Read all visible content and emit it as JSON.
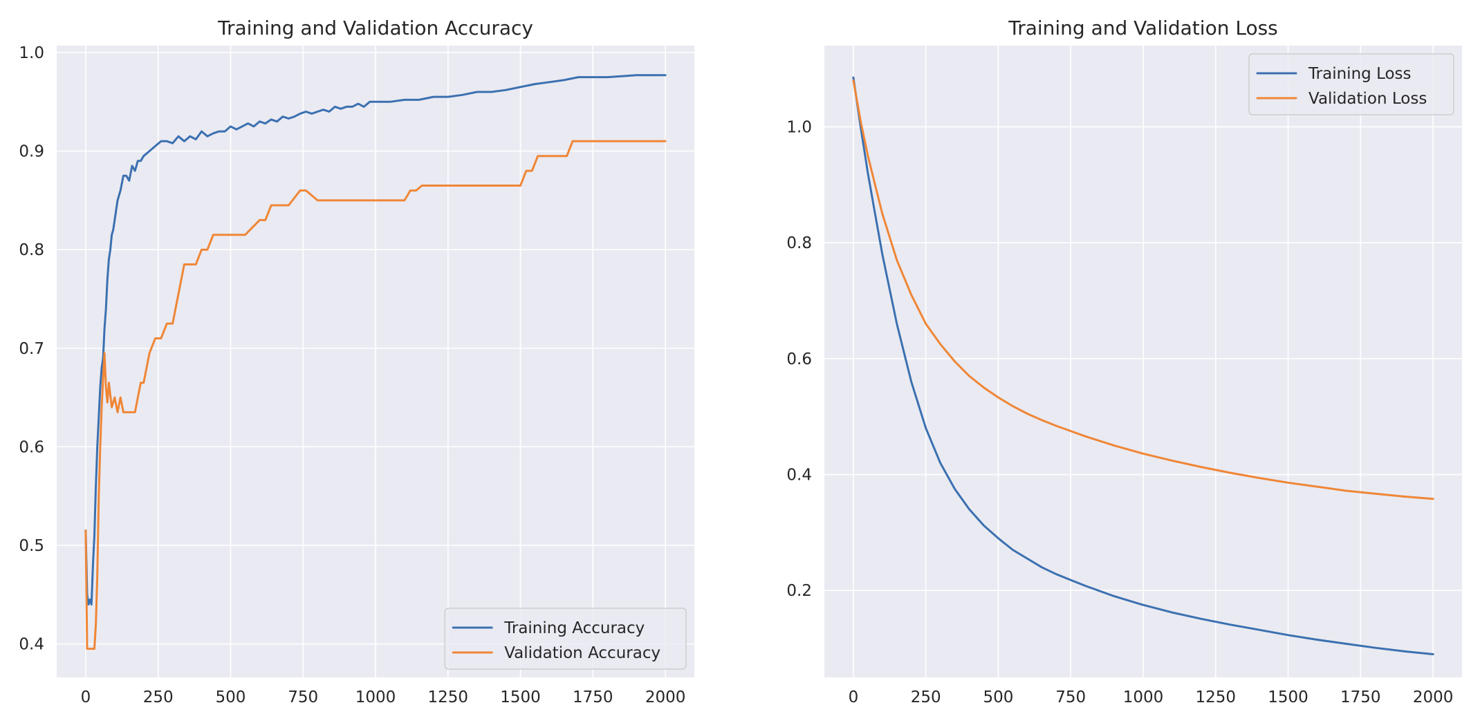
{
  "figure": {
    "background": "#ffffff",
    "plot_background": "#eaeaf2",
    "grid_color": "#ffffff"
  },
  "chart_data": [
    {
      "type": "line",
      "title": "Training and Validation Accuracy",
      "xlabel": "",
      "ylabel": "",
      "xlim": [
        -100,
        2100
      ],
      "ylim": [
        0.366,
        1.007
      ],
      "x_ticks": [
        0,
        250,
        500,
        750,
        1000,
        1250,
        1500,
        1750,
        2000
      ],
      "x_tick_labels": [
        "0",
        "250",
        "500",
        "750",
        "1000",
        "1250",
        "1500",
        "1750",
        "2000"
      ],
      "y_ticks": [
        0.4,
        0.5,
        0.6,
        0.7,
        0.8,
        0.9,
        1.0
      ],
      "y_tick_labels": [
        "0.4",
        "0.5",
        "0.6",
        "0.7",
        "0.8",
        "0.9",
        "1.0"
      ],
      "grid": true,
      "legend": "lower right",
      "series": [
        {
          "name": "Training Accuracy",
          "color": "#3a70b0",
          "x": [
            0,
            5,
            10,
            15,
            20,
            25,
            30,
            35,
            40,
            45,
            50,
            55,
            60,
            65,
            70,
            75,
            80,
            85,
            90,
            95,
            100,
            110,
            120,
            130,
            140,
            150,
            160,
            170,
            180,
            190,
            200,
            220,
            240,
            260,
            280,
            300,
            320,
            340,
            360,
            380,
            400,
            420,
            440,
            460,
            480,
            500,
            520,
            540,
            560,
            580,
            600,
            620,
            640,
            660,
            680,
            700,
            720,
            740,
            760,
            780,
            800,
            820,
            840,
            860,
            880,
            900,
            920,
            940,
            960,
            980,
            1000,
            1050,
            1100,
            1150,
            1200,
            1250,
            1300,
            1350,
            1400,
            1450,
            1500,
            1550,
            1600,
            1650,
            1700,
            1750,
            1800,
            1850,
            1900,
            1950,
            2000
          ],
          "y": [
            0.515,
            0.45,
            0.44,
            0.445,
            0.44,
            0.48,
            0.51,
            0.56,
            0.6,
            0.63,
            0.66,
            0.68,
            0.69,
            0.72,
            0.74,
            0.77,
            0.79,
            0.8,
            0.815,
            0.82,
            0.83,
            0.85,
            0.86,
            0.875,
            0.875,
            0.87,
            0.885,
            0.88,
            0.89,
            0.89,
            0.895,
            0.9,
            0.905,
            0.91,
            0.91,
            0.908,
            0.915,
            0.91,
            0.915,
            0.912,
            0.92,
            0.915,
            0.918,
            0.92,
            0.92,
            0.925,
            0.922,
            0.925,
            0.928,
            0.925,
            0.93,
            0.928,
            0.932,
            0.93,
            0.935,
            0.933,
            0.935,
            0.938,
            0.94,
            0.938,
            0.94,
            0.942,
            0.94,
            0.945,
            0.943,
            0.945,
            0.945,
            0.948,
            0.945,
            0.95,
            0.95,
            0.95,
            0.952,
            0.952,
            0.955,
            0.955,
            0.957,
            0.96,
            0.96,
            0.962,
            0.965,
            0.968,
            0.97,
            0.972,
            0.975,
            0.975,
            0.975,
            0.976,
            0.977,
            0.977,
            0.977
          ]
        },
        {
          "name": "Validation Accuracy",
          "color": "#ef8636",
          "x": [
            0,
            5,
            10,
            20,
            30,
            35,
            40,
            45,
            50,
            55,
            60,
            65,
            70,
            75,
            80,
            90,
            100,
            110,
            120,
            130,
            140,
            150,
            160,
            170,
            180,
            190,
            200,
            210,
            220,
            240,
            260,
            280,
            300,
            310,
            320,
            330,
            340,
            360,
            380,
            400,
            420,
            440,
            460,
            480,
            500,
            550,
            600,
            620,
            640,
            660,
            700,
            740,
            760,
            800,
            840,
            900,
            1000,
            1100,
            1120,
            1140,
            1160,
            1200,
            1300,
            1400,
            1500,
            1520,
            1540,
            1560,
            1600,
            1660,
            1680,
            1700,
            1750,
            1800,
            1900,
            2000
          ],
          "y": [
            0.515,
            0.395,
            0.395,
            0.395,
            0.395,
            0.42,
            0.47,
            0.55,
            0.6,
            0.64,
            0.67,
            0.695,
            0.66,
            0.645,
            0.665,
            0.64,
            0.65,
            0.635,
            0.65,
            0.635,
            0.635,
            0.635,
            0.635,
            0.635,
            0.65,
            0.665,
            0.665,
            0.68,
            0.695,
            0.71,
            0.71,
            0.725,
            0.725,
            0.74,
            0.755,
            0.77,
            0.785,
            0.785,
            0.785,
            0.8,
            0.8,
            0.815,
            0.815,
            0.815,
            0.815,
            0.815,
            0.83,
            0.83,
            0.845,
            0.845,
            0.845,
            0.86,
            0.86,
            0.85,
            0.85,
            0.85,
            0.85,
            0.85,
            0.86,
            0.86,
            0.865,
            0.865,
            0.865,
            0.865,
            0.865,
            0.88,
            0.88,
            0.895,
            0.895,
            0.895,
            0.91,
            0.91,
            0.91,
            0.91,
            0.91,
            0.91
          ]
        }
      ]
    },
    {
      "type": "line",
      "title": "Training and Validation Loss",
      "xlabel": "",
      "ylabel": "",
      "xlim": [
        -100,
        2100
      ],
      "ylim": [
        0.05,
        1.14
      ],
      "x_ticks": [
        0,
        250,
        500,
        750,
        1000,
        1250,
        1500,
        1750,
        2000
      ],
      "x_tick_labels": [
        "0",
        "250",
        "500",
        "750",
        "1000",
        "1250",
        "1500",
        "1750",
        "2000"
      ],
      "y_ticks": [
        0.2,
        0.4,
        0.6,
        0.8,
        1.0
      ],
      "y_tick_labels": [
        "0.2",
        "0.4",
        "0.6",
        "0.8",
        "1.0"
      ],
      "grid": true,
      "legend": "upper right",
      "series": [
        {
          "name": "Training Loss",
          "color": "#3a70b0",
          "x": [
            0,
            25,
            50,
            75,
            100,
            150,
            200,
            250,
            300,
            350,
            400,
            450,
            500,
            550,
            600,
            650,
            700,
            750,
            800,
            900,
            1000,
            1100,
            1200,
            1300,
            1400,
            1500,
            1600,
            1700,
            1800,
            1900,
            2000
          ],
          "y": [
            1.085,
            1.0,
            0.92,
            0.85,
            0.78,
            0.66,
            0.56,
            0.48,
            0.42,
            0.375,
            0.34,
            0.312,
            0.29,
            0.27,
            0.255,
            0.24,
            0.228,
            0.218,
            0.208,
            0.19,
            0.175,
            0.162,
            0.151,
            0.141,
            0.132,
            0.123,
            0.115,
            0.108,
            0.101,
            0.095,
            0.09
          ]
        },
        {
          "name": "Validation Loss",
          "color": "#ef8636",
          "x": [
            0,
            25,
            50,
            75,
            100,
            150,
            200,
            250,
            300,
            350,
            400,
            450,
            500,
            550,
            600,
            650,
            700,
            750,
            800,
            900,
            1000,
            1100,
            1200,
            1300,
            1400,
            1500,
            1600,
            1700,
            1800,
            1900,
            2000
          ],
          "y": [
            1.08,
            1.01,
            0.95,
            0.9,
            0.85,
            0.77,
            0.71,
            0.66,
            0.625,
            0.595,
            0.57,
            0.55,
            0.533,
            0.518,
            0.505,
            0.494,
            0.484,
            0.475,
            0.466,
            0.45,
            0.436,
            0.424,
            0.413,
            0.403,
            0.394,
            0.386,
            0.379,
            0.372,
            0.367,
            0.362,
            0.358
          ]
        }
      ]
    }
  ]
}
